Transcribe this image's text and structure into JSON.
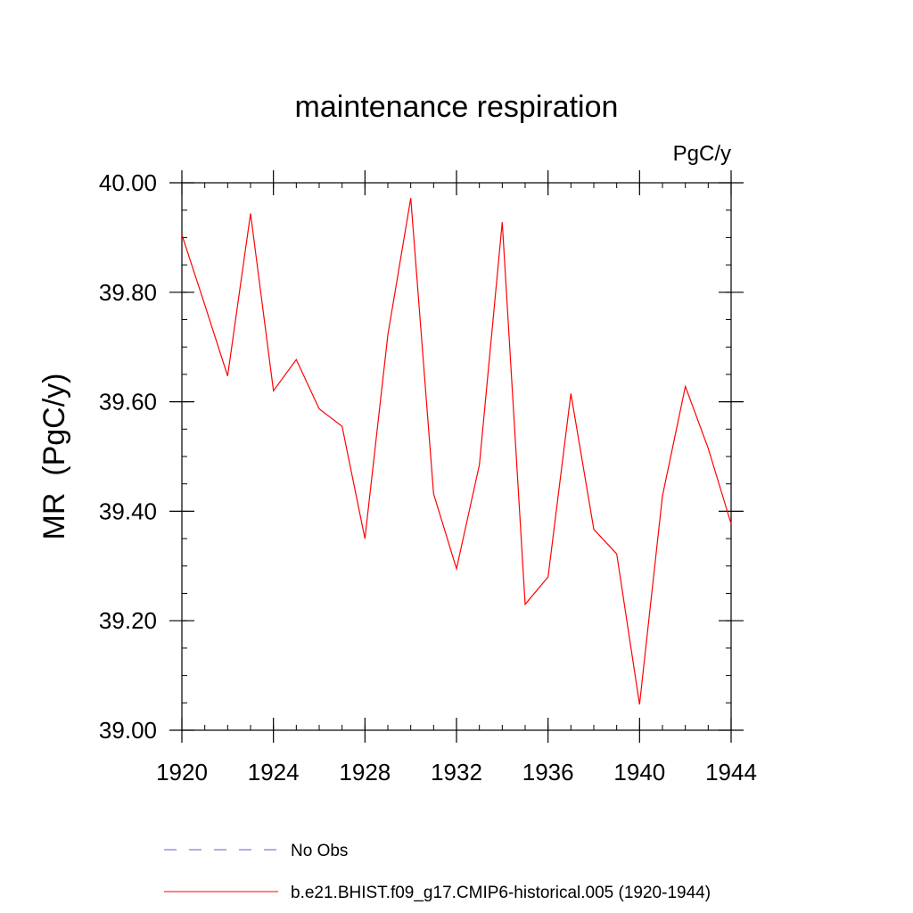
{
  "chart_data": {
    "type": "line",
    "title": "maintenance respiration",
    "units": "PgC/y",
    "xlabel": "",
    "ylabel": "MR  (PgC/y)",
    "xlim": [
      1920,
      1944
    ],
    "ylim": [
      39.0,
      40.0
    ],
    "x_ticks": [
      "1920",
      "1924",
      "1928",
      "1932",
      "1936",
      "1940",
      "1944"
    ],
    "y_ticks": [
      "39.00",
      "39.20",
      "39.40",
      "39.60",
      "39.80",
      "40.00"
    ],
    "x": [
      1920,
      1921,
      1922,
      1923,
      1924,
      1925,
      1926,
      1927,
      1928,
      1929,
      1930,
      1931,
      1932,
      1933,
      1934,
      1935,
      1936,
      1937,
      1938,
      1939,
      1940,
      1941,
      1942,
      1943,
      1944
    ],
    "series": [
      {
        "name": "b.e21.BHIST.f09_g17.CMIP6-historical.005 (1920-1944)",
        "color": "#ff0000",
        "style": "solid",
        "values": [
          39.905,
          39.777,
          39.647,
          39.944,
          39.62,
          39.677,
          39.587,
          39.555,
          39.35,
          39.722,
          39.972,
          39.432,
          39.295,
          39.485,
          39.928,
          39.23,
          39.28,
          39.615,
          39.367,
          39.322,
          39.047,
          39.428,
          39.628,
          39.515,
          39.377
        ]
      }
    ],
    "legend": [
      {
        "label": "No Obs",
        "color": "#6a5acd",
        "style": "dashed"
      },
      {
        "label": "b.e21.BHIST.f09_g17.CMIP6-historical.005 (1920-1944)",
        "color": "#ff0000",
        "style": "solid"
      }
    ]
  }
}
